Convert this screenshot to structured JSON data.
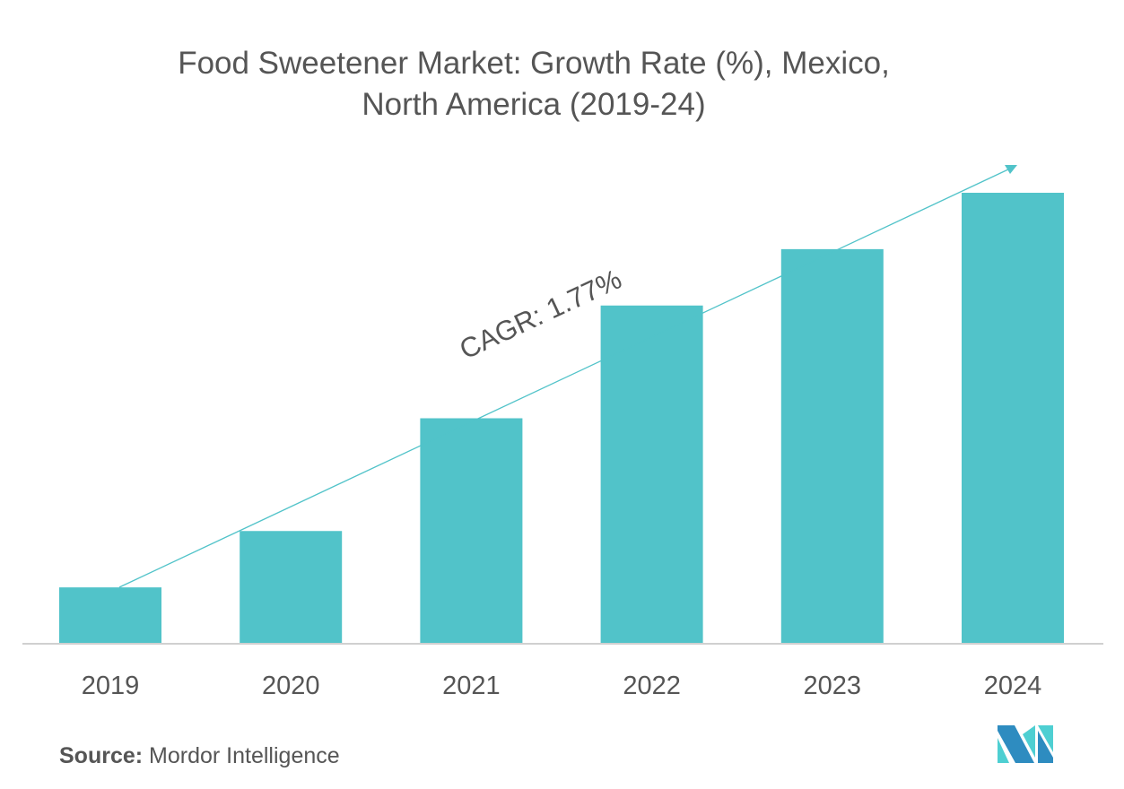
{
  "chart_data": {
    "type": "bar",
    "title_lines": [
      "Food Sweetener Market: Growth Rate (%), Mexico,",
      "North America (2019-24)"
    ],
    "categories": [
      "2019",
      "2020",
      "2021",
      "2022",
      "2023",
      "2024"
    ],
    "values": [
      1,
      2,
      4,
      6,
      7,
      8
    ],
    "value_note": "relative bar heights; no y-axis shown",
    "ylim": [
      0,
      8
    ],
    "xlabel": "",
    "ylabel": "",
    "grid": false,
    "annotation": "CAGR: 1.77%",
    "bar_color": "#51C3C9",
    "trend_color": "#51C3C9"
  },
  "source": {
    "label": "Source:",
    "text": "Mordor Intelligence"
  },
  "logo": {
    "colors": [
      "#2E8CC0",
      "#4ECFD2"
    ]
  }
}
